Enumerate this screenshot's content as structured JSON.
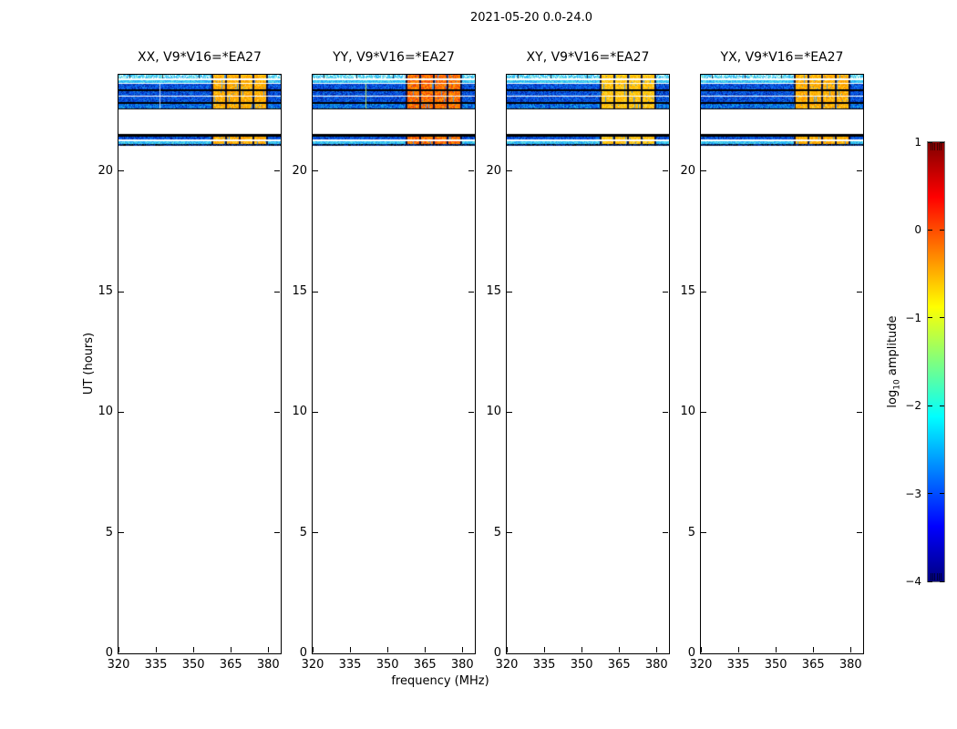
{
  "figure": {
    "title": "2021-05-20 0.0-24.0"
  },
  "panels": [
    {
      "pol": "XX",
      "title": "XX, V9*V16=*EA27",
      "hot": "orange",
      "accent": {
        "freq": 336.5,
        "color": "rgba(232,248,255,0.8)"
      }
    },
    {
      "pol": "YY",
      "title": "YY, V9*V16=*EA27",
      "hot": "red",
      "accent": {
        "freq": 341.0,
        "color": "rgba(200,240,96,0.9)"
      }
    },
    {
      "pol": "XY",
      "title": "XY, V9*V16=*EA27",
      "hot": "yellow",
      "accent": null
    },
    {
      "pol": "YX",
      "title": "YX, V9*V16=*EA27",
      "hot": "orange",
      "accent": null
    }
  ],
  "axes": {
    "xlabel": "frequency (MHz)",
    "ylabel": "UT (hours)",
    "x_ticks": [
      320,
      335,
      350,
      365,
      380
    ],
    "y_ticks": [
      0,
      5,
      10,
      15,
      20
    ],
    "xlim": [
      320,
      385
    ],
    "ylim": [
      0,
      24
    ]
  },
  "colorbar": {
    "label_text": "log",
    "label_sub": "10",
    "label_rest": " amplitude",
    "ticks": [
      1,
      0,
      -1,
      -2,
      -3,
      -4
    ],
    "vmin": -4,
    "vmax": 1,
    "colormap": "jet"
  },
  "chart_data": {
    "type": "heatmap",
    "title": "2021-05-20 0.0-24.0",
    "xlabel": "frequency (MHz)",
    "ylabel": "UT (hours)",
    "xlim": [
      320,
      385
    ],
    "ylim": [
      0,
      24
    ],
    "x_ticks": [
      320,
      335,
      350,
      365,
      380
    ],
    "y_ticks": [
      0,
      5,
      10,
      15,
      20
    ],
    "grid": false,
    "colorbar": {
      "label": "log10 amplitude",
      "ticks": [
        1,
        0,
        -1,
        -2,
        -3,
        -4
      ],
      "range": [
        -4,
        1
      ],
      "colormap": "jet"
    },
    "panels": [
      "XX, V9*V16=*EA27",
      "YY, V9*V16=*EA27",
      "XY, V9*V16=*EA27",
      "YX, V9*V16=*EA27"
    ],
    "scans": [
      {
        "ut_range": [
          21.05,
          21.56
        ],
        "freq_range": [
          320,
          385
        ]
      },
      {
        "ut_range": [
          22.55,
          24.0
        ],
        "freq_range": [
          320,
          385
        ]
      }
    ],
    "background_level_log10": [
      -3.2,
      -2.0
    ],
    "hot_region": {
      "freq_range": [
        357.3,
        379.2
      ],
      "level_log10": [
        -1.0,
        0.3
      ],
      "subband_edges_mhz": [
        357.3,
        362.8,
        368.3,
        373.8,
        379.2
      ]
    },
    "subband_grid_mhz": [
      324.5,
      337.5,
      352.0
    ],
    "bands": [
      {
        "t0": 24.0,
        "t1": 23.85,
        "kind": "top",
        "level_log10": -2.0
      },
      {
        "t0": 23.85,
        "t1": 23.79,
        "kind": "white",
        "level_log10": null
      },
      {
        "t0": 23.79,
        "t1": 23.66,
        "kind": "cyan",
        "level_log10": -2.2
      },
      {
        "t0": 23.66,
        "t1": 23.62,
        "kind": "white",
        "level_log10": null
      },
      {
        "t0": 23.62,
        "t1": 23.39,
        "kind": "blue",
        "level_log10": -2.8
      },
      {
        "t0": 23.39,
        "t1": 23.33,
        "kind": "black",
        "level_log10": null
      },
      {
        "t0": 23.33,
        "t1": 23.13,
        "kind": "blue",
        "level_log10": -2.8
      },
      {
        "t0": 23.13,
        "t1": 23.09,
        "kind": "white",
        "level_log10": null
      },
      {
        "t0": 23.09,
        "t1": 22.86,
        "kind": "blue",
        "level_log10": -2.8
      },
      {
        "t0": 22.86,
        "t1": 22.79,
        "kind": "black",
        "level_log10": null
      },
      {
        "t0": 22.79,
        "t1": 22.6,
        "kind": "blue2",
        "level_log10": -2.6
      },
      {
        "t0": 22.6,
        "t1": 22.55,
        "kind": "black",
        "level_log10": null
      },
      {
        "t0": 21.56,
        "t1": 21.43,
        "kind": "black",
        "level_log10": null
      },
      {
        "t0": 21.43,
        "t1": 21.3,
        "kind": "blue",
        "level_log10": -2.8
      },
      {
        "t0": 21.3,
        "t1": 21.24,
        "kind": "white",
        "level_log10": null
      },
      {
        "t0": 21.24,
        "t1": 21.11,
        "kind": "cyan",
        "level_log10": -2.2
      },
      {
        "t0": 21.11,
        "t1": 21.05,
        "kind": "dark",
        "level_log10": -3.6
      }
    ]
  }
}
